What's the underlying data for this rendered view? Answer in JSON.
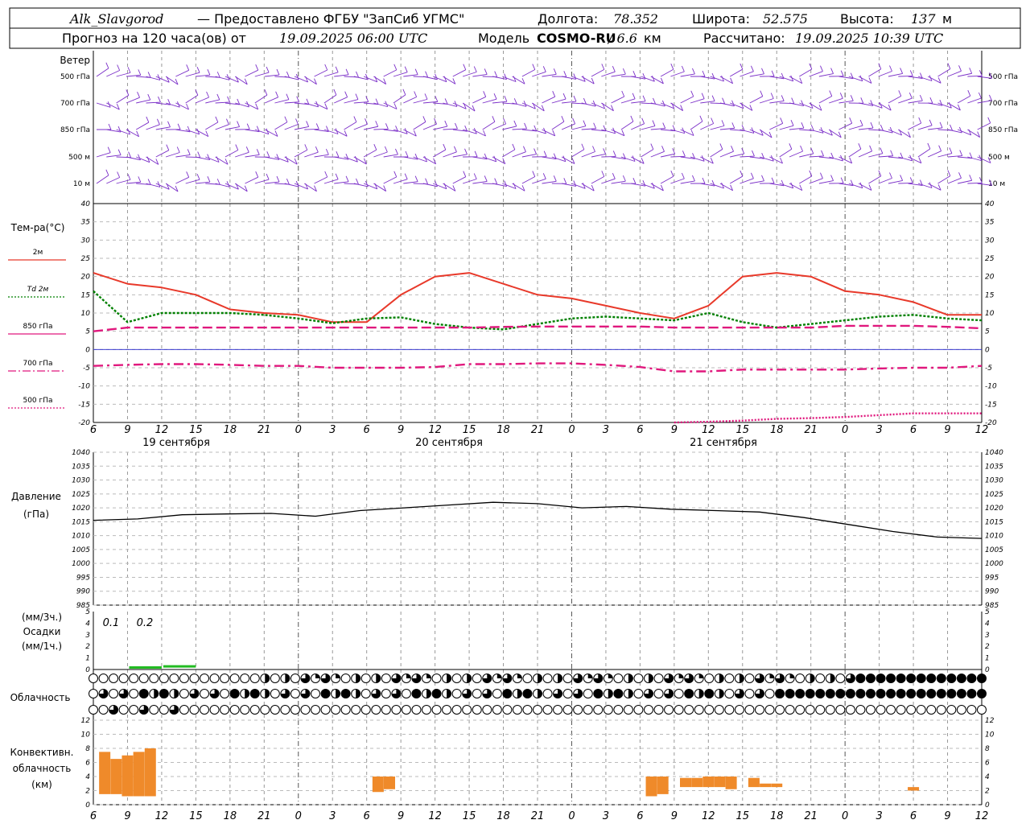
{
  "header": {
    "station": "Alk_Slavgorod",
    "provider": "— Предоставлено ФГБУ \"ЗапСиб УГМС\"",
    "lon_label": "Долгота:",
    "lon_value": "78.352",
    "lat_label": "Широта:",
    "lat_value": "52.575",
    "alt_label": "Высота:",
    "alt_value": "137",
    "alt_unit": "м",
    "forecast_prefix": "Прогноз на 120 часа(ов) от",
    "forecast_start": "19.09.2025 06:00 UTC",
    "model_label": "Модель",
    "model_name": "COSMO-RU",
    "model_res": "/ 6.6",
    "model_res_unit": "км",
    "calc_label": "Рассчитано:",
    "calc_time": "19.09.2025 10:39 UTC"
  },
  "wind_panel": {
    "title": "Ветер",
    "levels": [
      "500 гПа",
      "700 гПа",
      "850 гПа",
      "500 м",
      "10 м"
    ]
  },
  "temp_panel": {
    "title": "Тем-ра(°C)",
    "legend": [
      "2м",
      "Td 2м",
      "850 гПа",
      "700 гПа",
      "500 гПа"
    ]
  },
  "pressure_panel": {
    "title_line1": "Давление",
    "title_line2": "(гПа)"
  },
  "precip_panel": {
    "line1": "(мм/3ч.)",
    "line2": "Осадки",
    "line3": "(мм/1ч.)",
    "labels": [
      "0.1",
      "0.2"
    ]
  },
  "cloud_panel": {
    "title": "Облачность"
  },
  "conv_panel": {
    "line1": "Конвективн.",
    "line2": "облачность",
    "line3": "(км)"
  },
  "x_ticks": [
    "6",
    "9",
    "12",
    "15",
    "18",
    "21",
    "0",
    "3",
    "6",
    "9",
    "12",
    "15",
    "18",
    "21",
    "0",
    "3",
    "6",
    "9",
    "12",
    "15",
    "18",
    "21",
    "0",
    "3",
    "6",
    "9",
    "12"
  ],
  "dates": [
    "19 сентября",
    "20 сентября",
    "21 сентября"
  ],
  "colors": {
    "t2m": "#e8392a",
    "td2m": "#008000",
    "t850": "#e0187d",
    "wind": "#7b2fc8",
    "pressure": "#000000",
    "precip": "#22bb22",
    "conv": "#ef8a2a",
    "zero_line": "#2222cc"
  },
  "chart_data": [
    {
      "type": "line",
      "title": "Тем-ра(°C)",
      "x_hours": [
        0,
        3,
        6,
        9,
        12,
        15,
        18,
        21,
        24,
        27,
        30,
        33,
        36,
        39,
        42,
        45,
        48,
        51,
        54,
        57,
        60,
        63,
        66,
        69,
        72,
        75,
        78
      ],
      "ylim": [
        -20,
        40
      ],
      "series": [
        {
          "name": "2м",
          "values": [
            21,
            18,
            17,
            15,
            11,
            10,
            9.5,
            7.5,
            7.5,
            15,
            20,
            21,
            18,
            15,
            14,
            12,
            10,
            8.5,
            12,
            20,
            21,
            20,
            16,
            15,
            13,
            9.5,
            9.5
          ]
        },
        {
          "name": "Td 2м",
          "values": [
            16,
            7.5,
            10,
            10,
            10,
            9.5,
            8.5,
            7.2,
            8.5,
            8.8,
            7,
            6,
            5.5,
            7,
            8.5,
            9,
            8.5,
            8,
            10,
            7.5,
            6,
            7,
            8,
            9,
            9.5,
            8.5,
            8
          ]
        },
        {
          "name": "850 гПа",
          "values": [
            5,
            6,
            6,
            6,
            6,
            6,
            6,
            6,
            6,
            6,
            6,
            6,
            6.2,
            6.3,
            6.3,
            6.3,
            6.3,
            6.0,
            6.0,
            6.0,
            6.0,
            6.0,
            6.5,
            6.5,
            6.5,
            6.2,
            5.8
          ]
        },
        {
          "name": "700 гПа",
          "values": [
            -4.5,
            -4.2,
            -4,
            -4,
            -4.2,
            -4.5,
            -4.5,
            -5,
            -5,
            -5,
            -4.8,
            -4,
            -4,
            -3.8,
            -3.8,
            -4.2,
            -4.8,
            -6,
            -6,
            -5.5,
            -5.5,
            -5.5,
            -5.5,
            -5.2,
            -5,
            -5,
            -4.5
          ]
        },
        {
          "name": "500 гПа",
          "values": [
            null,
            null,
            null,
            null,
            null,
            null,
            null,
            null,
            null,
            null,
            null,
            null,
            null,
            null,
            null,
            null,
            null,
            -20,
            -19.8,
            -19.5,
            -19,
            -18.8,
            -18.5,
            -18,
            -17.5,
            -17.5,
            -17.5
          ]
        }
      ]
    },
    {
      "type": "line",
      "title": "Давление",
      "ylabel": "(гПа)",
      "x_hours": [
        0,
        6,
        12,
        18,
        24,
        30,
        36,
        42,
        48,
        54,
        60,
        66,
        72,
        78,
        84,
        90,
        96,
        102,
        108,
        114,
        120
      ],
      "ylim": [
        985,
        1040
      ],
      "values": [
        1015.5,
        1016,
        1017.5,
        1017.8,
        1018,
        1017,
        1019,
        1020,
        1021,
        1022,
        1021.5,
        1020,
        1020.5,
        1019.5,
        1019,
        1018.5,
        1016.5,
        1014,
        1011.5,
        1009.5,
        1009
      ]
    },
    {
      "type": "bar",
      "title": "Осадки",
      "ylim": [
        0,
        5
      ],
      "x_hours": [
        6,
        9
      ],
      "values": [
        0.1,
        0.2
      ]
    },
    {
      "type": "bar",
      "title": "Конвективн. облачность",
      "ylabel": "(км)",
      "ylim": [
        0,
        12
      ],
      "bars": [
        {
          "x": 1,
          "base": 1.5,
          "top": 7.5
        },
        {
          "x": 2,
          "base": 1.5,
          "top": 6.5
        },
        {
          "x": 3,
          "base": 1.2,
          "top": 7
        },
        {
          "x": 4,
          "base": 1.2,
          "top": 7.5
        },
        {
          "x": 5,
          "base": 1.2,
          "top": 8
        },
        {
          "x": 25,
          "base": 1.8,
          "top": 4
        },
        {
          "x": 26,
          "base": 2.2,
          "top": 4
        },
        {
          "x": 49,
          "base": 1.2,
          "top": 4
        },
        {
          "x": 50,
          "base": 1.5,
          "top": 4
        },
        {
          "x": 52,
          "base": 2.5,
          "top": 3.8
        },
        {
          "x": 53,
          "base": 2.5,
          "top": 3.8
        },
        {
          "x": 54,
          "base": 2.5,
          "top": 4
        },
        {
          "x": 55,
          "base": 2.5,
          "top": 4
        },
        {
          "x": 56,
          "base": 2.2,
          "top": 4
        },
        {
          "x": 58,
          "base": 2.5,
          "top": 3.8
        },
        {
          "x": 59,
          "base": 2.5,
          "top": 3
        },
        {
          "x": 60,
          "base": 2.5,
          "top": 3
        },
        {
          "x": 72,
          "base": 2,
          "top": 2.5
        }
      ]
    }
  ]
}
